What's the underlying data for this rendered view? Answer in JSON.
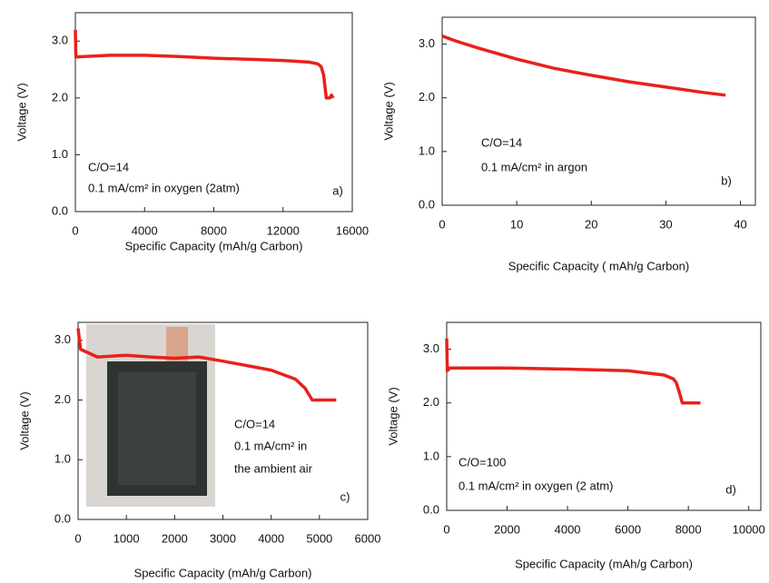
{
  "chart_data": [
    {
      "type": "line",
      "color": "#e8211b",
      "x": [
        0,
        30,
        500,
        2000,
        4000,
        6000,
        8000,
        10000,
        12000,
        13500,
        14000,
        14200,
        14350,
        14500,
        14700,
        14800,
        14900
      ],
      "values": [
        3.2,
        2.72,
        2.73,
        2.75,
        2.75,
        2.73,
        2.7,
        2.68,
        2.66,
        2.63,
        2.6,
        2.55,
        2.4,
        2.0,
        2.0,
        2.05,
        2.0
      ],
      "xlim": [
        0,
        16000
      ],
      "xticks": [
        0,
        4000,
        8000,
        12000,
        16000
      ],
      "ylim": [
        0,
        3.5
      ],
      "yticks": [
        {
          "value": 0,
          "label": "0.0"
        },
        {
          "value": 1,
          "label": "1.0"
        },
        {
          "value": 2,
          "label": "2.0"
        },
        {
          "value": 3,
          "label": "3.0"
        }
      ],
      "xlabel": "Specific Capacity (mAh/g Carbon)",
      "ylabel": "Voltage (V)",
      "annotations": [
        "C/O=14",
        "0.1 mA/cm² in oxygen (2atm)",
        "a)"
      ]
    },
    {
      "type": "line",
      "color": "#e8211b",
      "x": [
        0,
        2,
        5,
        10,
        15,
        20,
        25,
        30,
        35,
        38
      ],
      "values": [
        3.15,
        3.05,
        2.92,
        2.72,
        2.55,
        2.42,
        2.3,
        2.2,
        2.1,
        2.05
      ],
      "xlim": [
        0,
        42
      ],
      "xticks": [
        0,
        10,
        20,
        30,
        40
      ],
      "ylim": [
        0,
        3.5
      ],
      "yticks": [
        {
          "value": 0,
          "label": "0.0"
        },
        {
          "value": 1,
          "label": "1.0"
        },
        {
          "value": 2,
          "label": "2.0"
        },
        {
          "value": 3,
          "label": "3.0"
        }
      ],
      "xlabel": "Specific Capacity ( mAh/g Carbon)",
      "ylabel": "Voltage (V)",
      "annotations": [
        "C/O=14",
        "0.1 mA/cm² in argon",
        "b)"
      ]
    },
    {
      "type": "line",
      "color": "#e8211b",
      "x": [
        0,
        50,
        400,
        1000,
        1500,
        2000,
        2500,
        3000,
        4000,
        4500,
        4700,
        4850,
        5350
      ],
      "values": [
        3.2,
        2.85,
        2.72,
        2.75,
        2.72,
        2.7,
        2.72,
        2.65,
        2.5,
        2.35,
        2.2,
        2.0,
        2.0
      ],
      "xlim": [
        0,
        6000
      ],
      "xticks": [
        0,
        1000,
        2000,
        3000,
        4000,
        5000,
        6000
      ],
      "ylim": [
        0,
        3.3
      ],
      "yticks": [
        {
          "value": 0,
          "label": "0.0"
        },
        {
          "value": 1,
          "label": "1.0"
        },
        {
          "value": 2,
          "label": "2.0"
        },
        {
          "value": 3,
          "label": "3.0"
        }
      ],
      "xlabel": "Specific Capacity (mAh/g Carbon)",
      "ylabel": "Voltage (V)",
      "annotations": [
        "C/O=14",
        "0.1 mA/cm² in",
        "the ambient air",
        "c)"
      ]
    },
    {
      "type": "line",
      "color": "#e8211b",
      "x": [
        0,
        20,
        100,
        2000,
        4000,
        6000,
        7200,
        7500,
        7600,
        7700,
        7800,
        8400
      ],
      "values": [
        3.2,
        2.6,
        2.65,
        2.65,
        2.63,
        2.6,
        2.52,
        2.45,
        2.38,
        2.2,
        2.0,
        2.0
      ],
      "xlim": [
        0,
        10400
      ],
      "xticks": [
        0,
        2000,
        4000,
        6000,
        8000,
        10000
      ],
      "ylim": [
        0,
        3.5
      ],
      "yticks": [
        {
          "value": 0,
          "label": "0.0"
        },
        {
          "value": 1,
          "label": "1.0"
        },
        {
          "value": 2,
          "label": "2.0"
        },
        {
          "value": 3,
          "label": "3.0"
        }
      ],
      "xlabel": "Specific Capacity (mAh/g Carbon)",
      "ylabel": "Voltage (V)",
      "annotations": [
        "C/O=100",
        "0.1 mA/cm² in oxygen (2 atm)",
        "d)"
      ]
    }
  ]
}
